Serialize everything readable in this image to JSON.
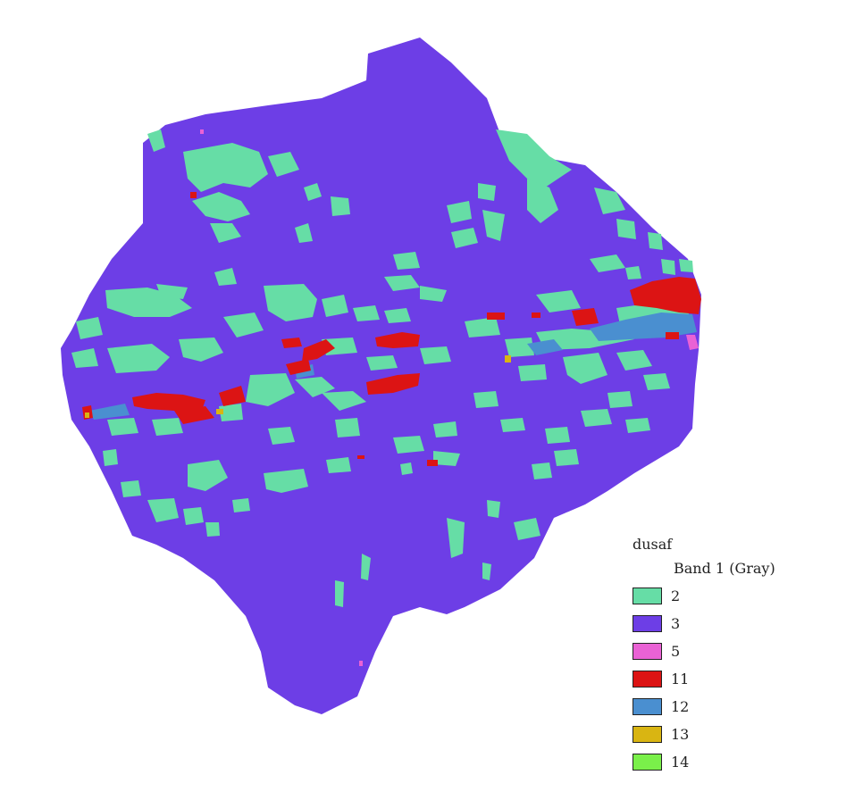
{
  "map": {
    "background_color": "#ffffff",
    "base_class_color": "#6d3ee6",
    "overlay_classes": [
      {
        "value": "2",
        "color": "#66dda6"
      },
      {
        "value": "11",
        "color": "#dc1414"
      },
      {
        "value": "12",
        "color": "#4a8fd0"
      },
      {
        "value": "13",
        "color": "#d9b512"
      },
      {
        "value": "5",
        "color": "#ea62d5"
      }
    ]
  },
  "legend": {
    "layer_name": "dusaf",
    "band_label": "Band 1 (Gray)",
    "items": [
      {
        "label": "2",
        "color": "#66dda6"
      },
      {
        "label": "3",
        "color": "#6d3ee6"
      },
      {
        "label": "5",
        "color": "#ea62d5"
      },
      {
        "label": "11",
        "color": "#dc1414"
      },
      {
        "label": "12",
        "color": "#4a8fd0"
      },
      {
        "label": "13",
        "color": "#d9b512"
      },
      {
        "label": "14",
        "color": "#7af04a"
      }
    ]
  }
}
